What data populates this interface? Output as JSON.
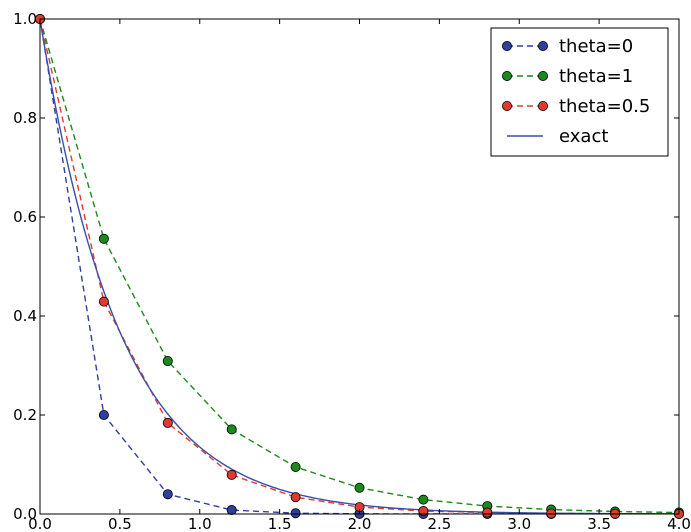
{
  "chart_data": {
    "type": "line",
    "xlim": [
      0.0,
      4.0
    ],
    "ylim": [
      0.0,
      1.0
    ],
    "x_ticks": [
      0.0,
      0.5,
      1.0,
      1.5,
      2.0,
      2.5,
      3.0,
      3.5,
      4.0
    ],
    "x_tick_labels": [
      "0.0",
      "0.5",
      "1.0",
      "1.5",
      "2.0",
      "2.5",
      "3.0",
      "3.5",
      "4.0"
    ],
    "y_ticks": [
      0.0,
      0.2,
      0.4,
      0.6,
      0.8,
      1.0
    ],
    "y_tick_labels": [
      "0.0",
      "0.2",
      "0.4",
      "0.6",
      "0.8",
      "1.0"
    ],
    "grid": false,
    "legend_position": "top-right",
    "series": [
      {
        "name": "theta=0",
        "color": "#2f3f9e",
        "line_style": "dashed",
        "marker": "circle",
        "x": [
          0.0,
          0.4,
          0.8,
          1.2,
          1.6,
          2.0,
          2.4,
          2.8,
          3.2,
          3.6,
          4.0
        ],
        "y": [
          1.0,
          0.2,
          0.04,
          0.008,
          0.0016,
          0.00032,
          6.4e-05,
          1.28e-05,
          2.6e-06,
          5e-07,
          1e-07
        ]
      },
      {
        "name": "theta=1",
        "color": "#1a8a1a",
        "line_style": "dashed",
        "marker": "circle",
        "x": [
          0.0,
          0.4,
          0.8,
          1.2,
          1.6,
          2.0,
          2.4,
          2.8,
          3.2,
          3.6,
          4.0
        ],
        "y": [
          1.0,
          0.556,
          0.309,
          0.171,
          0.095,
          0.053,
          0.029,
          0.016,
          0.009,
          0.005,
          0.003
        ]
      },
      {
        "name": "theta=0.5",
        "color": "#e03a2f",
        "line_style": "dashed",
        "marker": "circle",
        "x": [
          0.0,
          0.4,
          0.8,
          1.2,
          1.6,
          2.0,
          2.4,
          2.8,
          3.2,
          3.6,
          4.0
        ],
        "y": [
          1.0,
          0.429,
          0.184,
          0.079,
          0.034,
          0.014,
          0.006,
          0.003,
          0.001,
          0.0005,
          0.0002
        ]
      },
      {
        "name": "exact",
        "color": "#3b4fa8",
        "line_style": "solid",
        "marker": "none",
        "function": "exp(-2x)"
      }
    ]
  }
}
